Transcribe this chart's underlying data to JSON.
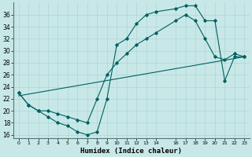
{
  "xlabel": "Humidex (Indice chaleur)",
  "bg_color": "#c8e8e8",
  "grid_color": "#b0d4d4",
  "line_color": "#006060",
  "xlim": [
    -0.5,
    23.5
  ],
  "ylim": [
    15.5,
    38
  ],
  "yticks": [
    16,
    18,
    20,
    22,
    24,
    26,
    28,
    30,
    32,
    34,
    36
  ],
  "xtick_positions": [
    0,
    1,
    2,
    3,
    4,
    5,
    6,
    7,
    8,
    9,
    10,
    11,
    12,
    13,
    14,
    16,
    17,
    18,
    19,
    20,
    21,
    22,
    23
  ],
  "xtick_labels": [
    "0",
    "1",
    "2",
    "3",
    "4",
    "5",
    "6",
    "7",
    "8",
    "9",
    "10",
    "11",
    "12",
    "13",
    "14",
    "16",
    "17",
    "18",
    "19",
    "20",
    "21",
    "22",
    "23"
  ],
  "line1_x": [
    0,
    1,
    2,
    3,
    4,
    5,
    6,
    7,
    8,
    9,
    10,
    11,
    12,
    13,
    14,
    16,
    17,
    18,
    19,
    20,
    21,
    22,
    23
  ],
  "line1_y": [
    23,
    21,
    20,
    19,
    18,
    17.5,
    16.5,
    16,
    16.5,
    22,
    31,
    32,
    34.5,
    36,
    36.5,
    37,
    37.5,
    37.5,
    35,
    35,
    25,
    29,
    29
  ],
  "line2_x": [
    0,
    1,
    2,
    3,
    4,
    5,
    6,
    7,
    8,
    9,
    10,
    11,
    12,
    13,
    14,
    16,
    17,
    18,
    19,
    20,
    21,
    22,
    23
  ],
  "line2_y": [
    23,
    21,
    20,
    20,
    19.5,
    19,
    18.5,
    18,
    22,
    26,
    28,
    29.5,
    31,
    32,
    33,
    35,
    36,
    35,
    32,
    29,
    28.5,
    29.5,
    29
  ],
  "line3_x": [
    0,
    23
  ],
  "line3_y": [
    22.5,
    29
  ],
  "figsize": [
    3.2,
    2.0
  ],
  "dpi": 100
}
